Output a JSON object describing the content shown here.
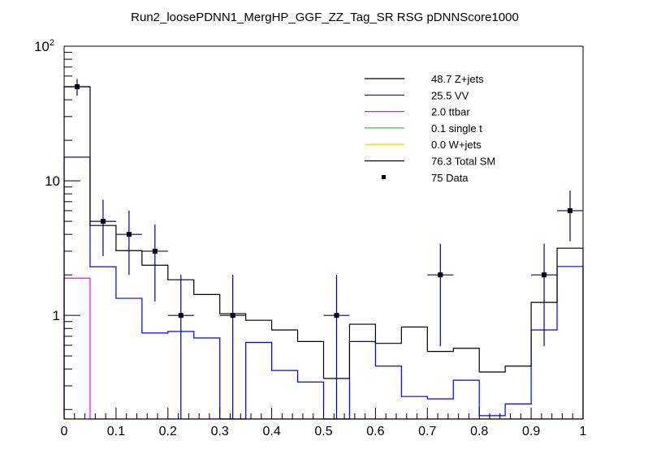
{
  "chart_data": {
    "type": "histogram-step",
    "title": "Run2_loosePDNN1_MergHP_GGF_ZZ_Tag_SR RSG  pDNNScore1000",
    "xlabel": "",
    "ylabel": "",
    "xlim": [
      0,
      1
    ],
    "ylim": [
      0.17,
      100
    ],
    "y_scale": "log",
    "grid": false,
    "legend_position": "top-right",
    "bin_edges": [
      0,
      0.05,
      0.1,
      0.15,
      0.2,
      0.25,
      0.3,
      0.35,
      0.4,
      0.45,
      0.5,
      0.55,
      0.6,
      0.65,
      0.7,
      0.75,
      0.8,
      0.85,
      0.9,
      0.95,
      1.0
    ],
    "x_tick_labels": [
      "0",
      "0.1",
      "0.2",
      "0.3",
      "0.4",
      "0.5",
      "0.6",
      "0.7",
      "0.8",
      "0.9",
      "1"
    ],
    "y_tick_labels": [
      {
        "value": 100,
        "base": "10",
        "exp": "2"
      },
      {
        "value": 10,
        "base": "10",
        "exp": ""
      },
      {
        "value": 1,
        "base": "1",
        "exp": ""
      }
    ],
    "series": [
      {
        "name": "Total SM",
        "legend": "76.3 Total SM",
        "color": "#000000",
        "values": [
          50,
          4.66,
          3.03,
          2.36,
          1.84,
          1.43,
          1.03,
          0.92,
          0.78,
          0.64,
          0.34,
          0.86,
          0.62,
          0.82,
          0.54,
          0.57,
          0.38,
          0.42,
          1.25,
          3.16
        ]
      },
      {
        "name": "VV",
        "legend": "25.5 VV",
        "color": "#0000ff",
        "values": [
          15,
          2.3,
          1.34,
          0.74,
          0.76,
          0.68,
          0,
          0.63,
          0.39,
          0.32,
          0,
          0.64,
          0.42,
          0.25,
          0.24,
          0.33,
          0.18,
          0.22,
          0.78,
          2.31
        ]
      },
      {
        "name": "ttbar",
        "legend": " 2.0 ttbar",
        "color": "#ff00ff",
        "values": [
          1.89,
          0,
          0,
          0,
          0,
          0,
          0,
          0,
          0,
          0,
          0,
          0,
          0,
          0,
          0,
          0,
          0,
          0,
          0,
          0
        ]
      },
      {
        "name": "single t",
        "legend": " 0.1 single t",
        "color": "#33cc33",
        "values": [
          0,
          0,
          0,
          0,
          0,
          0,
          0,
          0,
          0,
          0,
          0,
          0,
          0,
          0,
          0,
          0,
          0,
          0,
          0,
          0
        ]
      },
      {
        "name": "W+jets",
        "legend": " 0.0 W+jets",
        "color": "#ffcc00",
        "values": [
          0,
          0,
          0,
          0,
          0,
          0,
          0,
          0,
          0,
          0,
          0,
          0,
          0,
          0,
          0,
          0,
          0,
          0,
          0,
          0
        ]
      }
    ],
    "legend_extra": [
      {
        "name": "Z+jets",
        "legend": "48.7 Z+jets",
        "color": "#000000"
      }
    ],
    "data": {
      "name": "Data",
      "legend": "  75 Data",
      "marker_color": "#000000",
      "error_color": "#00008b",
      "x": [
        0.025,
        0.075,
        0.125,
        0.175,
        0.225,
        0.325,
        0.525,
        0.725,
        0.925,
        0.975
      ],
      "y": [
        50,
        5,
        4,
        3,
        1,
        1,
        1,
        2,
        2,
        6
      ],
      "yerr": [
        7.07,
        2.24,
        2,
        1.73,
        1,
        1,
        1,
        1.41,
        1.41,
        2.45
      ]
    }
  }
}
